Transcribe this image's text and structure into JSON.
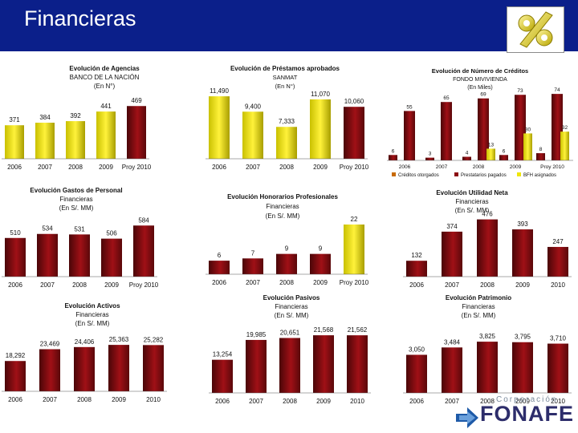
{
  "header": {
    "title": "Financieras",
    "bg_color": "#0b1f8a",
    "logo_icon": "percent-icon"
  },
  "brand": {
    "corporacion": "Corporación",
    "name": "FONAFE"
  },
  "colors": {
    "dark_red": "#8b0c10",
    "yellow": "#efe60a"
  },
  "chart_data": [
    {
      "type": "bar",
      "title_lines": [
        "Evolución de Agencias",
        "BANCO DE LA NACIÓN",
        "(En N°)"
      ],
      "categories": [
        "2006",
        "2007",
        "2008",
        "2009",
        "Proy 2010"
      ],
      "values": [
        371,
        384,
        392,
        441,
        469
      ],
      "value_labels": [
        "371",
        "384",
        "392",
        "441",
        "469"
      ],
      "colors": [
        "yellow",
        "yellow",
        "yellow",
        "yellow",
        "dark_red"
      ]
    },
    {
      "type": "bar",
      "title_lines": [
        "Evolución de Préstamos aprobados",
        "SANMAT",
        "(En N°)"
      ],
      "categories": [
        "2006",
        "2007",
        "2008",
        "2009",
        "Proy 2010"
      ],
      "values": [
        11490,
        9400,
        7333,
        11070,
        10060
      ],
      "value_labels": [
        "11,490",
        "9,400",
        "7,333",
        "11,070",
        "10,060"
      ],
      "colors": [
        "yellow",
        "yellow",
        "yellow",
        "yellow",
        "dark_red"
      ]
    },
    {
      "type": "bar",
      "title_lines": [
        "Evolución de Número de Créditos",
        "FONDO MIVIVIENDA",
        "(En Miles)"
      ],
      "categories": [
        "2006",
        "2007",
        "2008",
        "2009",
        "Proy 2010"
      ],
      "series": [
        {
          "name": "Créditos otorgados",
          "values": [
            6,
            3,
            4,
            6,
            8
          ],
          "value_labels": [
            "6",
            "3",
            "4",
            "6",
            "8"
          ]
        },
        {
          "name": "Prestatarios pagados",
          "values": [
            55,
            65,
            69,
            73,
            74
          ],
          "value_labels": [
            "55",
            "65",
            "69",
            "73",
            "74"
          ]
        },
        {
          "name": "BFH asignados",
          "values": [
            0,
            0,
            13,
            30,
            32
          ],
          "value_labels": [
            "",
            "",
            "13",
            "30",
            "32"
          ]
        }
      ]
    },
    {
      "type": "bar",
      "title_lines": [
        "Evolución Gastos de Personal",
        "Financieras",
        "(En S/. MM)"
      ],
      "categories": [
        "2006",
        "2007",
        "2008",
        "2009",
        "Proy 2010"
      ],
      "values": [
        510,
        534,
        531,
        506,
        584
      ],
      "value_labels": [
        "510",
        "534",
        "531",
        "506",
        "584"
      ]
    },
    {
      "type": "bar",
      "title_lines": [
        "Evolución Honorarios Profesionales",
        "Financieras",
        "(En S/. MM)"
      ],
      "categories": [
        "2006",
        "2007",
        "2008",
        "2009",
        "Proy 2010"
      ],
      "values": [
        6,
        7,
        9,
        9,
        22
      ],
      "value_labels": [
        "6",
        "7",
        "9",
        "9",
        "22"
      ],
      "colors": [
        "dark_red",
        "dark_red",
        "dark_red",
        "dark_red",
        "yellow"
      ]
    },
    {
      "type": "bar",
      "title_lines": [
        "Evolución Utilidad Neta",
        "Financieras",
        "(En S/. MM)"
      ],
      "categories": [
        "2006",
        "2007",
        "2008",
        "2009",
        "2010"
      ],
      "values": [
        132,
        374,
        476,
        393,
        247
      ],
      "value_labels": [
        "132",
        "374",
        "476",
        "393",
        "247"
      ]
    },
    {
      "type": "bar",
      "title_lines": [
        "Evolución Activos",
        "Financieras",
        "(En S/. MM)"
      ],
      "categories": [
        "2006",
        "2007",
        "2008",
        "2009",
        "2010"
      ],
      "values": [
        18292,
        23469,
        24406,
        25363,
        25282
      ],
      "value_labels": [
        "18,292",
        "23,469",
        "24,406",
        "25,363",
        "25,282"
      ]
    },
    {
      "type": "bar",
      "title_lines": [
        "Evolución Pasivos",
        "Financieras",
        "(En S/. MM)"
      ],
      "categories": [
        "2006",
        "2007",
        "2008",
        "2009",
        "2010"
      ],
      "values": [
        13254,
        19985,
        20651,
        21568,
        21562
      ],
      "value_labels": [
        "13,254",
        "19,985",
        "20,651",
        "21,568",
        "21,562"
      ]
    },
    {
      "type": "bar",
      "title_lines": [
        "Evolución Patrimonio",
        "Financieras",
        "(En S/. MM)"
      ],
      "categories": [
        "2006",
        "2007",
        "2008",
        "2009",
        "2010"
      ],
      "values": [
        3050,
        3484,
        3825,
        3795,
        3710
      ],
      "value_labels": [
        "3,050",
        "3,484",
        "3,825",
        "3,795",
        "3,710"
      ]
    }
  ]
}
